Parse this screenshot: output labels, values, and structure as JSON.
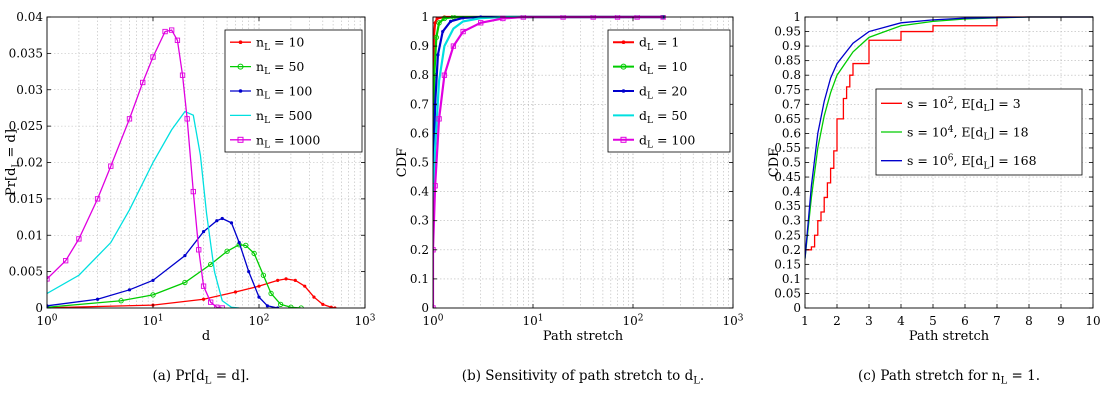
{
  "figure": {
    "panels": [
      {
        "id": "a",
        "caption": "(a)  Pr[d_L = d].",
        "chart_data": {
          "type": "line",
          "title": "",
          "xlabel": "d",
          "ylabel": "Pr[d_L = d]",
          "xscale": "log",
          "xlim": [
            1,
            1000
          ],
          "ylim": [
            0,
            0.04
          ],
          "xticks": [
            1,
            10,
            100,
            1000
          ],
          "xtick_labels": [
            "10^0",
            "10^1",
            "10^2",
            "10^3"
          ],
          "yticks": [
            0,
            0.005,
            0.01,
            0.015,
            0.02,
            0.025,
            0.03,
            0.035,
            0.04
          ],
          "ytick_labels": [
            "0",
            "0.005",
            "0.01",
            "0.015",
            "0.02",
            "0.025",
            "0.03",
            "0.035",
            "0.04"
          ],
          "grid": true,
          "legend_position": "top-right",
          "series": [
            {
              "name": "n_L = 10",
              "color": "#ff0000",
              "marker": "dot",
              "points": [
                [
                  1,
                  3e-05
                ],
                [
                  10,
                  0.0004
                ],
                [
                  30,
                  0.0012
                ],
                [
                  60,
                  0.0022
                ],
                [
                  100,
                  0.003
                ],
                [
                  150,
                  0.0038
                ],
                [
                  180,
                  0.004
                ],
                [
                  220,
                  0.0038
                ],
                [
                  270,
                  0.003
                ],
                [
                  330,
                  0.0015
                ],
                [
                  400,
                  0.0005
                ],
                [
                  480,
                  0.0001
                ],
                [
                  520,
                  0
                ]
              ]
            },
            {
              "name": "n_L = 50",
              "color": "#00cc00",
              "marker": "circle",
              "points": [
                [
                  1,
                  0.0001
                ],
                [
                  5,
                  0.001
                ],
                [
                  10,
                  0.0018
                ],
                [
                  20,
                  0.0035
                ],
                [
                  35,
                  0.006
                ],
                [
                  50,
                  0.0078
                ],
                [
                  65,
                  0.0087
                ],
                [
                  75,
                  0.0086
                ],
                [
                  90,
                  0.0075
                ],
                [
                  110,
                  0.0045
                ],
                [
                  130,
                  0.002
                ],
                [
                  160,
                  0.0005
                ],
                [
                  200,
                  0.0001
                ],
                [
                  250,
                  0
                ]
              ]
            },
            {
              "name": "n_L = 100",
              "color": "#0000cc",
              "marker": "dot",
              "points": [
                [
                  1,
                  0.0003
                ],
                [
                  3,
                  0.0012
                ],
                [
                  6,
                  0.0025
                ],
                [
                  10,
                  0.0038
                ],
                [
                  20,
                  0.0072
                ],
                [
                  30,
                  0.0105
                ],
                [
                  40,
                  0.012
                ],
                [
                  45,
                  0.0123
                ],
                [
                  55,
                  0.0117
                ],
                [
                  65,
                  0.009
                ],
                [
                  80,
                  0.005
                ],
                [
                  100,
                  0.0015
                ],
                [
                  120,
                  0.0003
                ],
                [
                  150,
                  0
                ]
              ]
            },
            {
              "name": "n_L = 500",
              "color": "#00e0e0",
              "marker": "none",
              "points": [
                [
                  1,
                  0.002
                ],
                [
                  2,
                  0.0045
                ],
                [
                  4,
                  0.009
                ],
                [
                  6,
                  0.0135
                ],
                [
                  10,
                  0.02
                ],
                [
                  15,
                  0.0245
                ],
                [
                  20,
                  0.027
                ],
                [
                  24,
                  0.0265
                ],
                [
                  28,
                  0.021
                ],
                [
                  32,
                  0.013
                ],
                [
                  38,
                  0.005
                ],
                [
                  45,
                  0.001
                ],
                [
                  55,
                  0.0001
                ],
                [
                  65,
                  0
                ]
              ]
            },
            {
              "name": "n_L = 1000",
              "color": "#e000e0",
              "marker": "square",
              "points": [
                [
                  1,
                  0.004
                ],
                [
                  1.5,
                  0.0065
                ],
                [
                  2,
                  0.0095
                ],
                [
                  3,
                  0.015
                ],
                [
                  4,
                  0.0195
                ],
                [
                  6,
                  0.026
                ],
                [
                  8,
                  0.031
                ],
                [
                  10,
                  0.0345
                ],
                [
                  13,
                  0.038
                ],
                [
                  15,
                  0.0382
                ],
                [
                  17,
                  0.0368
                ],
                [
                  19,
                  0.032
                ],
                [
                  21,
                  0.026
                ],
                [
                  24,
                  0.016
                ],
                [
                  27,
                  0.008
                ],
                [
                  30,
                  0.003
                ],
                [
                  35,
                  0.0008
                ],
                [
                  40,
                  0.0001
                ],
                [
                  45,
                  0
                ]
              ]
            }
          ]
        }
      },
      {
        "id": "b",
        "caption": "(b)  Sensitivity of path stretch to d_L.",
        "chart_data": {
          "type": "line",
          "title": "",
          "xlabel": "Path stretch",
          "ylabel": "CDF",
          "xscale": "log",
          "xlim": [
            1,
            1000
          ],
          "ylim": [
            0,
            1
          ],
          "xticks": [
            1,
            10,
            100,
            1000
          ],
          "xtick_labels": [
            "10^0",
            "10^1",
            "10^2",
            "10^3"
          ],
          "yticks": [
            0,
            0.1,
            0.2,
            0.3,
            0.4,
            0.5,
            0.6,
            0.7,
            0.8,
            0.9,
            1
          ],
          "ytick_labels": [
            "0",
            "0.1",
            "0.2",
            "0.3",
            "0.4",
            "0.5",
            "0.6",
            "0.7",
            "0.8",
            "0.9",
            "1"
          ],
          "grid": true,
          "legend_position": "top-right",
          "series": [
            {
              "name": "d_L = 1",
              "color": "#ff0000",
              "marker": "dot",
              "points": [
                [
                  1,
                  0.7
                ],
                [
                  1.02,
                  0.93
                ],
                [
                  1.05,
                  0.98
                ],
                [
                  1.1,
                  0.995
                ],
                [
                  1.3,
                  1
                ],
                [
                  200,
                  1
                ]
              ]
            },
            {
              "name": "d_L = 10",
              "color": "#00cc00",
              "marker": "circle",
              "points": [
                [
                  1,
                  0.5
                ],
                [
                  1.03,
                  0.8
                ],
                [
                  1.08,
                  0.93
                ],
                [
                  1.15,
                  0.98
                ],
                [
                  1.3,
                  0.995
                ],
                [
                  1.6,
                  1
                ],
                [
                  200,
                  1
                ]
              ]
            },
            {
              "name": "d_L = 20",
              "color": "#0000cc",
              "marker": "dot",
              "points": [
                [
                  1,
                  0.4
                ],
                [
                  1.05,
                  0.7
                ],
                [
                  1.12,
                  0.87
                ],
                [
                  1.25,
                  0.95
                ],
                [
                  1.5,
                  0.985
                ],
                [
                  2,
                  0.997
                ],
                [
                  3,
                  1
                ],
                [
                  200,
                  1
                ]
              ]
            },
            {
              "name": "d_L = 50",
              "color": "#00e0e0",
              "marker": "none",
              "points": [
                [
                  1,
                  0.25
                ],
                [
                  1.05,
                  0.55
                ],
                [
                  1.15,
                  0.78
                ],
                [
                  1.3,
                  0.9
                ],
                [
                  1.6,
                  0.96
                ],
                [
                  2,
                  0.985
                ],
                [
                  3,
                  0.996
                ],
                [
                  5,
                  1
                ],
                [
                  200,
                  1
                ]
              ]
            },
            {
              "name": "d_L = 100",
              "color": "#e000e0",
              "marker": "square",
              "points": [
                [
                  1,
                  0
                ],
                [
                  1.0,
                  0.2
                ],
                [
                  1.05,
                  0.42
                ],
                [
                  1.15,
                  0.65
                ],
                [
                  1.3,
                  0.8
                ],
                [
                  1.6,
                  0.9
                ],
                [
                  2,
                  0.95
                ],
                [
                  3,
                  0.98
                ],
                [
                  5,
                  0.995
                ],
                [
                  8,
                  1
                ],
                [
                  20,
                  1
                ],
                [
                  40,
                  1
                ],
                [
                  70,
                  1
                ],
                [
                  110,
                  1
                ],
                [
                  200,
                  1
                ]
              ]
            }
          ]
        }
      },
      {
        "id": "c",
        "caption": "(c)  Path stretch for n_L = 1.",
        "chart_data": {
          "type": "line",
          "title": "",
          "xlabel": "Path stretch",
          "ylabel": "CDF",
          "xscale": "linear",
          "xlim": [
            1,
            10
          ],
          "ylim": [
            0,
            1
          ],
          "xticks": [
            1,
            2,
            3,
            4,
            5,
            6,
            7,
            8,
            9,
            10
          ],
          "xtick_labels": [
            "1",
            "2",
            "3",
            "4",
            "5",
            "6",
            "7",
            "8",
            "9",
            "10"
          ],
          "yticks": [
            0,
            0.05,
            0.1,
            0.15,
            0.2,
            0.25,
            0.3,
            0.35,
            0.4,
            0.45,
            0.5,
            0.55,
            0.6,
            0.65,
            0.7,
            0.75,
            0.8,
            0.85,
            0.9,
            0.95,
            1
          ],
          "ytick_labels": [
            "0",
            "0.05",
            "0.1",
            "0.15",
            "0.2",
            "0.25",
            "0.3",
            "0.35",
            "0.4",
            "0.45",
            "0.5",
            "0.55",
            "0.6",
            "0.65",
            "0.7",
            "0.75",
            "0.8",
            "0.85",
            "0.9",
            "0.95",
            "1"
          ],
          "grid": true,
          "legend_position": "center-right",
          "series": [
            {
              "name": "s = 10^2, E[d_L] = 3",
              "color": "#ff0000",
              "step": true,
              "points": [
                [
                  1,
                  0.2
                ],
                [
                  1.2,
                  0.21
                ],
                [
                  1.3,
                  0.25
                ],
                [
                  1.4,
                  0.3
                ],
                [
                  1.5,
                  0.33
                ],
                [
                  1.6,
                  0.38
                ],
                [
                  1.7,
                  0.43
                ],
                [
                  1.8,
                  0.48
                ],
                [
                  1.9,
                  0.54
                ],
                [
                  2.0,
                  0.65
                ],
                [
                  2.2,
                  0.72
                ],
                [
                  2.3,
                  0.76
                ],
                [
                  2.4,
                  0.8
                ],
                [
                  2.5,
                  0.84
                ],
                [
                  3.0,
                  0.92
                ],
                [
                  4.0,
                  0.95
                ],
                [
                  5.0,
                  0.97
                ],
                [
                  7.0,
                  1.0
                ],
                [
                  10,
                  1.0
                ]
              ]
            },
            {
              "name": "s = 10^4, E[d_L] = 18",
              "color": "#00cc00",
              "step": false,
              "points": [
                [
                  1,
                  0.17
                ],
                [
                  1.2,
                  0.38
                ],
                [
                  1.4,
                  0.55
                ],
                [
                  1.6,
                  0.66
                ],
                [
                  1.8,
                  0.74
                ],
                [
                  2,
                  0.8
                ],
                [
                  2.5,
                  0.88
                ],
                [
                  3,
                  0.93
                ],
                [
                  4,
                  0.97
                ],
                [
                  5,
                  0.985
                ],
                [
                  6,
                  0.993
                ],
                [
                  7,
                  0.997
                ],
                [
                  8,
                  1
                ],
                [
                  10,
                  1
                ]
              ]
            },
            {
              "name": "s = 10^6, E[d_L] = 168",
              "color": "#0000cc",
              "step": false,
              "points": [
                [
                  1,
                  0.17
                ],
                [
                  1.2,
                  0.42
                ],
                [
                  1.4,
                  0.6
                ],
                [
                  1.6,
                  0.71
                ],
                [
                  1.8,
                  0.79
                ],
                [
                  2,
                  0.84
                ],
                [
                  2.5,
                  0.91
                ],
                [
                  3,
                  0.95
                ],
                [
                  4,
                  0.98
                ],
                [
                  5,
                  0.99
                ],
                [
                  6,
                  0.996
                ],
                [
                  7,
                  0.998
                ],
                [
                  8,
                  1
                ],
                [
                  10,
                  1
                ]
              ]
            }
          ]
        }
      }
    ]
  }
}
